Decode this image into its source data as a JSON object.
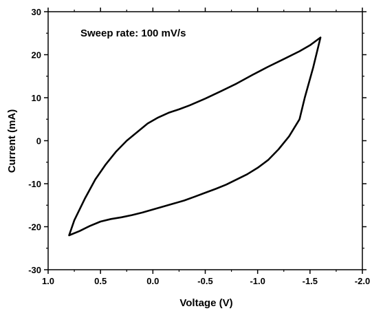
{
  "chart_data": {
    "type": "line",
    "title": "",
    "xlabel": "Voltage (V)",
    "ylabel": "Current (mA)",
    "annotation": "Sweep rate: 100 mV/s",
    "xlim": [
      1.0,
      -2.0
    ],
    "ylim": [
      -30,
      30
    ],
    "xticks": [
      1.0,
      0.5,
      0.0,
      -0.5,
      -1.0,
      -1.5,
      -2.0
    ],
    "xtick_labels": [
      "1.0",
      "0.5",
      "0.0",
      "-0.5",
      "-1.0",
      "-1.5",
      "-2.0"
    ],
    "yticks": [
      -30,
      -20,
      -10,
      0,
      10,
      20,
      30
    ],
    "ytick_labels": [
      "-30",
      "-20",
      "-10",
      "0",
      "10",
      "20",
      "30"
    ],
    "grid": false,
    "series": [
      {
        "color": "#000000",
        "x": [
          0.8,
          0.75,
          0.65,
          0.55,
          0.45,
          0.35,
          0.25,
          0.15,
          0.05,
          -0.05,
          -0.15,
          -0.25,
          -0.35,
          -0.5,
          -0.65,
          -0.8,
          -0.95,
          -1.1,
          -1.25,
          -1.4,
          -1.5,
          -1.6,
          -1.53,
          -1.45,
          -1.4,
          -1.3,
          -1.2,
          -1.1,
          -1.0,
          -0.9,
          -0.8,
          -0.7,
          -0.6,
          -0.5,
          -0.4,
          -0.3,
          -0.2,
          -0.1,
          0.0,
          0.1,
          0.2,
          0.3,
          0.4,
          0.5,
          0.6,
          0.7,
          0.8
        ],
        "y": [
          -22,
          -18.5,
          -13.5,
          -9,
          -5.5,
          -2.5,
          0,
          2,
          4,
          5.4,
          6.5,
          7.3,
          8.2,
          9.8,
          11.5,
          13.3,
          15.3,
          17.2,
          19,
          20.8,
          22.2,
          24,
          17,
          10,
          5,
          1,
          -2,
          -4.5,
          -6.3,
          -7.8,
          -9,
          -10.2,
          -11.2,
          -12.1,
          -13,
          -13.9,
          -14.6,
          -15.3,
          -16,
          -16.7,
          -17.3,
          -17.8,
          -18.2,
          -18.8,
          -19.8,
          -21,
          -22
        ]
      }
    ]
  }
}
